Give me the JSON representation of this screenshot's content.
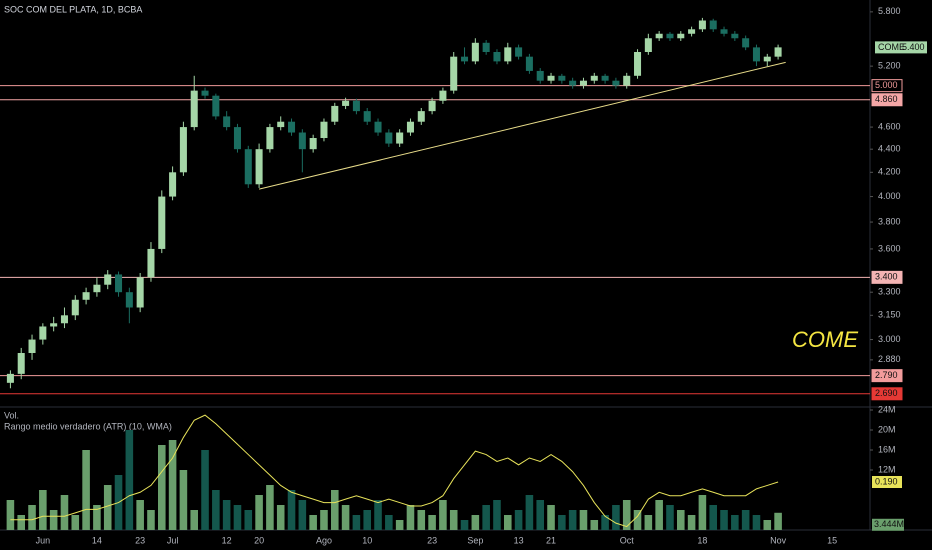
{
  "chart_data": {
    "type": "candlestick",
    "title": "SOC COM DEL PLATA, 1D, BCBA",
    "categories": [
      null,
      null,
      null,
      "Jun",
      null,
      null,
      null,
      null,
      "14",
      null,
      null,
      null,
      "23",
      null,
      null,
      "Jul",
      null,
      null,
      null,
      null,
      "12",
      null,
      null,
      "20",
      null,
      null,
      null,
      null,
      null,
      "Ago",
      null,
      null,
      null,
      "10",
      null,
      null,
      null,
      null,
      null,
      "23",
      null,
      null,
      null,
      "Sep",
      null,
      null,
      null,
      "13",
      null,
      null,
      "21",
      null,
      null,
      null,
      null,
      null,
      null,
      "Oct",
      null,
      null,
      null,
      null,
      null,
      null,
      "18",
      null,
      null,
      null,
      null,
      null,
      null,
      "Nov",
      null,
      null,
      null,
      null,
      "15",
      null,
      null,
      null
    ],
    "open": [
      2.75,
      2.8,
      2.92,
      3.0,
      3.08,
      3.1,
      3.15,
      3.25,
      3.3,
      3.35,
      3.42,
      3.3,
      3.2,
      3.4,
      3.6,
      4.0,
      4.2,
      4.6,
      4.95,
      4.9,
      4.7,
      4.6,
      4.4,
      4.1,
      4.4,
      4.6,
      4.65,
      4.55,
      4.4,
      4.5,
      4.65,
      4.8,
      4.85,
      4.75,
      4.65,
      4.55,
      4.45,
      4.55,
      4.65,
      4.75,
      4.85,
      4.95,
      5.3,
      5.25,
      5.45,
      5.35,
      5.25,
      5.4,
      5.3,
      5.15,
      5.05,
      5.1,
      5.05,
      5.0,
      5.05,
      5.1,
      5.05,
      5.0,
      5.1,
      5.35,
      5.5,
      5.55,
      5.5,
      5.55,
      5.6,
      5.7,
      5.6,
      5.55,
      5.5,
      5.4,
      5.25,
      5.3,
      null,
      null,
      null,
      null,
      null,
      null,
      null,
      null
    ],
    "high": [
      2.82,
      2.95,
      3.03,
      3.1,
      3.14,
      3.2,
      3.28,
      3.33,
      3.4,
      3.45,
      3.44,
      3.33,
      3.43,
      3.65,
      4.05,
      4.25,
      4.65,
      5.1,
      4.98,
      4.92,
      4.75,
      4.63,
      4.43,
      4.45,
      4.63,
      4.7,
      4.68,
      4.58,
      4.53,
      4.68,
      4.83,
      4.88,
      4.87,
      4.78,
      4.68,
      4.58,
      4.58,
      4.68,
      4.78,
      4.88,
      4.98,
      5.35,
      5.4,
      5.5,
      5.48,
      5.38,
      5.45,
      5.43,
      5.33,
      5.18,
      5.13,
      5.12,
      5.08,
      5.08,
      5.13,
      5.12,
      5.08,
      5.13,
      5.38,
      5.55,
      5.58,
      5.57,
      5.58,
      5.63,
      5.73,
      5.72,
      5.63,
      5.58,
      5.53,
      5.43,
      5.33,
      5.43,
      null,
      null,
      null,
      null,
      null,
      null,
      null,
      null
    ],
    "low": [
      2.72,
      2.77,
      2.88,
      2.97,
      3.05,
      3.07,
      3.12,
      3.22,
      3.27,
      3.32,
      3.27,
      3.1,
      3.17,
      3.37,
      3.57,
      3.97,
      4.17,
      4.57,
      4.87,
      4.67,
      4.57,
      4.37,
      4.07,
      4.07,
      4.37,
      4.57,
      4.52,
      4.2,
      4.37,
      4.47,
      4.62,
      4.77,
      4.72,
      4.62,
      4.52,
      4.42,
      4.42,
      4.52,
      4.62,
      4.72,
      4.82,
      4.92,
      5.22,
      5.22,
      5.32,
      5.22,
      5.22,
      5.27,
      5.12,
      5.02,
      5.02,
      5.02,
      4.97,
      4.97,
      5.02,
      5.02,
      4.97,
      4.97,
      5.07,
      5.32,
      5.47,
      5.47,
      5.47,
      5.52,
      5.57,
      5.57,
      5.52,
      5.47,
      5.37,
      5.2,
      5.2,
      5.27,
      null,
      null,
      null,
      null,
      null,
      null,
      null,
      null
    ],
    "close": [
      2.8,
      2.92,
      3.0,
      3.08,
      3.1,
      3.15,
      3.25,
      3.3,
      3.35,
      3.42,
      3.3,
      3.2,
      3.4,
      3.6,
      4.0,
      4.2,
      4.6,
      4.95,
      4.9,
      4.7,
      4.6,
      4.4,
      4.1,
      4.4,
      4.6,
      4.65,
      4.55,
      4.4,
      4.5,
      4.65,
      4.8,
      4.85,
      4.75,
      4.65,
      4.55,
      4.45,
      4.55,
      4.65,
      4.75,
      4.85,
      4.95,
      5.3,
      5.25,
      5.45,
      5.35,
      5.25,
      5.4,
      5.3,
      5.15,
      5.05,
      5.1,
      5.05,
      5.0,
      5.05,
      5.1,
      5.05,
      5.0,
      5.1,
      5.35,
      5.5,
      5.55,
      5.5,
      5.55,
      5.6,
      5.7,
      5.6,
      5.55,
      5.5,
      5.4,
      5.25,
      5.3,
      5.4,
      null,
      null,
      null,
      null,
      null,
      null,
      null,
      null
    ],
    "up_color": "#a5d6a7",
    "down_color": "#1b6e61",
    "ylim": [
      2.63,
      5.94
    ],
    "log": true,
    "yticks": [
      {
        "value": 2.88,
        "label": "2.880"
      },
      {
        "value": 3,
        "label": "3.000"
      },
      {
        "value": 3.15,
        "label": "3.150"
      },
      {
        "value": 3.3,
        "label": "3.300"
      },
      {
        "value": 3.6,
        "label": "3.600"
      },
      {
        "value": 3.8,
        "label": "3.800"
      },
      {
        "value": 4,
        "label": "4.000"
      },
      {
        "value": 4.2,
        "label": "4.200"
      },
      {
        "value": 4.4,
        "label": "4.400"
      },
      {
        "value": 4.6,
        "label": "4.600"
      },
      {
        "value": 5.2,
        "label": "5.200"
      },
      {
        "value": 5.8,
        "label": "5.800"
      }
    ],
    "levels": [
      {
        "value": 5,
        "label": "5.000",
        "color": "#f09a9a",
        "filled": false
      },
      {
        "value": 4.86,
        "label": "4.860",
        "color": "#f4a6a6",
        "filled": true
      },
      {
        "value": 3.4,
        "label": "3.400",
        "color": "#f4b4b4",
        "filled": true
      },
      {
        "value": 2.79,
        "label": "2.790",
        "color": "#f29c9c",
        "filled": true
      },
      {
        "value": 2.69,
        "label": "2.690",
        "color": "#e53935",
        "filled": true
      }
    ],
    "trendline": {
      "x": [
        23,
        71.7
      ],
      "y": [
        4.06,
        5.24
      ],
      "color": "#e8dc8a"
    },
    "last_price": {
      "name": "COME",
      "value": 5.4,
      "label": "5.400",
      "color": "#a5d6a7"
    },
    "annotation": "COME",
    "volume": {
      "name": "Vol.",
      "up_color": "#6a9f6c",
      "down_color": "#14574d",
      "values": [
        6,
        3,
        5,
        8,
        4,
        7,
        3,
        16,
        5,
        9,
        11,
        20,
        6,
        4,
        17,
        18,
        12,
        4,
        16,
        8,
        6,
        5,
        4,
        7,
        9,
        5,
        8,
        6,
        3,
        4,
        8,
        5,
        3,
        4,
        6,
        3,
        2,
        5,
        4,
        3,
        6,
        4,
        2,
        3,
        5,
        6,
        3,
        4,
        7,
        6,
        5,
        3,
        4,
        4,
        2,
        3,
        5,
        6,
        4,
        3,
        6,
        5,
        4,
        3,
        7,
        5,
        4,
        3,
        4,
        3,
        2,
        3.444,
        null,
        null,
        null,
        null,
        null,
        null,
        null,
        null
      ],
      "value_labels": [
        null,
        null,
        null,
        null,
        null,
        null,
        null,
        null,
        null,
        null,
        null,
        null,
        null,
        null,
        null,
        null,
        null,
        null,
        null,
        null,
        null,
        null,
        null,
        null,
        null,
        null,
        null,
        null,
        null,
        null,
        null,
        null,
        null,
        null,
        null,
        null,
        null,
        null,
        null,
        null,
        null,
        null,
        null,
        null,
        null,
        null,
        null,
        null,
        null,
        null,
        null,
        null,
        null,
        null,
        null,
        null,
        null,
        null,
        null,
        null,
        null,
        null,
        null,
        null,
        null,
        null,
        null,
        null,
        null,
        null,
        null,
        "3.444M",
        null,
        null,
        null,
        null,
        null,
        null,
        null,
        null
      ],
      "ylim": [
        0,
        24
      ],
      "yticks": [
        {
          "value": 12,
          "label": "12M"
        },
        {
          "value": 16,
          "label": "16M"
        },
        {
          "value": 20,
          "label": "20M"
        },
        {
          "value": 24,
          "label": "24M"
        }
      ]
    },
    "atr": {
      "name": "Rango medio verdadero (ATR) (10, WMA)",
      "color": "#e8e35a",
      "values": [
        0.08,
        0.08,
        0.08,
        0.09,
        0.09,
        0.09,
        0.1,
        0.11,
        0.11,
        0.12,
        0.13,
        0.15,
        0.16,
        0.18,
        0.22,
        0.26,
        0.32,
        0.37,
        0.385,
        0.36,
        0.33,
        0.3,
        0.27,
        0.24,
        0.21,
        0.18,
        0.16,
        0.15,
        0.14,
        0.13,
        0.13,
        0.14,
        0.15,
        0.14,
        0.13,
        0.14,
        0.13,
        0.12,
        0.12,
        0.13,
        0.15,
        0.2,
        0.24,
        0.28,
        0.27,
        0.25,
        0.26,
        0.24,
        0.26,
        0.25,
        0.27,
        0.25,
        0.22,
        0.18,
        0.13,
        0.09,
        0.07,
        0.06,
        0.09,
        0.14,
        0.16,
        0.15,
        0.15,
        0.16,
        0.17,
        0.16,
        0.15,
        0.15,
        0.15,
        0.17,
        0.18,
        0.19,
        null,
        null,
        null,
        null,
        null,
        null,
        null,
        null
      ],
      "value_labels": [
        null,
        null,
        null,
        null,
        null,
        null,
        null,
        null,
        null,
        null,
        null,
        null,
        null,
        null,
        null,
        null,
        null,
        null,
        null,
        null,
        null,
        null,
        null,
        null,
        null,
        null,
        null,
        null,
        null,
        null,
        null,
        null,
        null,
        null,
        null,
        null,
        null,
        null,
        null,
        null,
        null,
        null,
        null,
        null,
        null,
        null,
        null,
        null,
        null,
        null,
        null,
        null,
        null,
        null,
        null,
        null,
        null,
        null,
        null,
        null,
        null,
        null,
        null,
        null,
        null,
        null,
        null,
        null,
        null,
        null,
        null,
        "0.190",
        null,
        null,
        null,
        null,
        null,
        null,
        null,
        null
      ],
      "ylim": [
        0.05,
        0.4
      ]
    }
  }
}
